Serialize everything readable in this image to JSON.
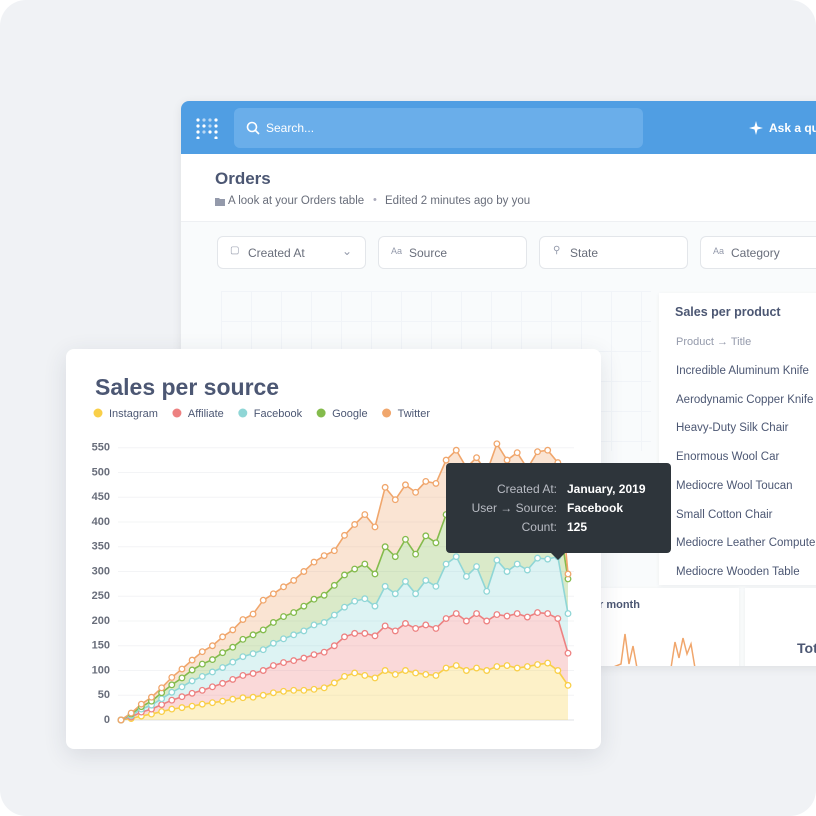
{
  "app": {
    "search": "Search...",
    "ask": "Ask a que"
  },
  "dashboard": {
    "title": "Orders",
    "description": "A look at your Orders table",
    "edited": "Edited 2 minutes ago by you",
    "filters": [
      "Created At",
      "Source",
      "State",
      "Category"
    ]
  },
  "product_card": {
    "title": "Sales per product",
    "column": "Product → Title",
    "rows": [
      "Incredible Aluminum Knife",
      "Aerodynamic Copper Knife",
      "Heavy-Duty Silk Chair",
      "Enormous Wool Car",
      "Mediocre Wool Toucan",
      "Small Cotton Chair",
      "Mediocre Leather Compute",
      "Mediocre Wooden Table"
    ]
  },
  "partial_cards": [
    "r month",
    "Tot"
  ],
  "chart_data": {
    "type": "area",
    "stacked": true,
    "title": "Sales per source",
    "ylim": [
      0,
      600
    ],
    "yticks": [
      0,
      50,
      100,
      150,
      200,
      250,
      300,
      350,
      400,
      450,
      500,
      550
    ],
    "series": [
      {
        "name": "Instagram",
        "color": "#f9cf48",
        "values": [
          0,
          3,
          8,
          12,
          17,
          22,
          25,
          28,
          32,
          35,
          38,
          42,
          45,
          46,
          50,
          55,
          58,
          60,
          60,
          62,
          65,
          75,
          88,
          95,
          90,
          85,
          100,
          92,
          100,
          95,
          92,
          90,
          105,
          110,
          100,
          105,
          100,
          108,
          110,
          105,
          108,
          112,
          115,
          100,
          70
        ]
      },
      {
        "name": "Affiliate",
        "color": "#ed8181",
        "values": [
          0,
          3,
          8,
          10,
          14,
          18,
          22,
          26,
          28,
          32,
          36,
          40,
          45,
          48,
          50,
          55,
          58,
          60,
          65,
          70,
          72,
          75,
          80,
          80,
          85,
          85,
          90,
          88,
          95,
          90,
          100,
          95,
          100,
          105,
          100,
          110,
          100,
          105,
          100,
          110,
          100,
          105,
          100,
          105,
          65
        ]
      },
      {
        "name": "Facebook",
        "color": "#8fd6d6",
        "values": [
          0,
          3,
          6,
          8,
          12,
          16,
          20,
          25,
          28,
          30,
          32,
          35,
          38,
          40,
          42,
          45,
          48,
          52,
          55,
          60,
          60,
          62,
          60,
          65,
          70,
          60,
          80,
          75,
          85,
          70,
          90,
          85,
          110,
          115,
          90,
          95,
          60,
          110,
          90,
          100,
          95,
          110,
          110,
          125,
          80
        ]
      },
      {
        "name": "Google",
        "color": "#84bb4c",
        "values": [
          0,
          3,
          5,
          8,
          12,
          15,
          18,
          22,
          25,
          25,
          30,
          30,
          35,
          38,
          40,
          42,
          45,
          45,
          50,
          52,
          55,
          60,
          65,
          65,
          70,
          65,
          80,
          75,
          85,
          80,
          90,
          88,
          100,
          95,
          105,
          110,
          110,
          115,
          110,
          100,
          95,
          100,
          95,
          85,
          70
        ]
      },
      {
        "name": "Twitter",
        "color": "#f0a66c",
        "values": [
          0,
          2,
          5,
          8,
          10,
          15,
          18,
          20,
          25,
          28,
          32,
          35,
          40,
          42,
          60,
          58,
          60,
          65,
          70,
          75,
          80,
          70,
          80,
          90,
          100,
          95,
          120,
          115,
          110,
          125,
          110,
          120,
          110,
          120,
          115,
          110,
          130,
          120,
          115,
          125,
          110,
          115,
          125,
          105,
          10
        ]
      }
    ],
    "tooltip": {
      "date_label": "Created At:",
      "date": "January, 2019",
      "source_label": "User → Source:",
      "count_label": "Count:",
      "series": 2,
      "index": 43
    }
  }
}
